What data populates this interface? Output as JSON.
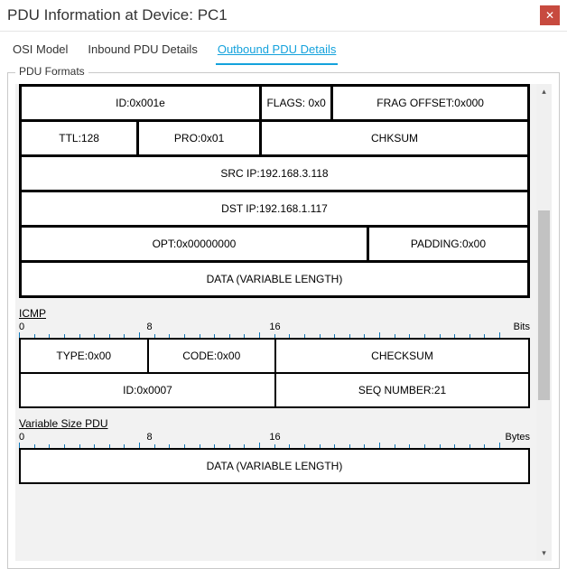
{
  "window": {
    "title": "PDU Information at Device: PC1"
  },
  "tabs": {
    "osi": "OSI Model",
    "inbound": "Inbound PDU Details",
    "outbound": "Outbound PDU Details"
  },
  "group": {
    "label": "PDU Formats"
  },
  "ip": {
    "row1": {
      "id": "ID:0x001e",
      "flags": "FLAGS: 0x0",
      "frag": "FRAG OFFSET:0x000"
    },
    "row2": {
      "ttl": "TTL:128",
      "pro": "PRO:0x01",
      "chksum": "CHKSUM"
    },
    "src": "SRC IP:192.168.3.118",
    "dst": "DST IP:192.168.1.117",
    "opt": "OPT:0x00000000",
    "padding": "PADDING:0x00",
    "data": "DATA (VARIABLE LENGTH)"
  },
  "icmp": {
    "label": "ICMP",
    "ruler": {
      "n0": "0",
      "n8": "8",
      "n16": "16",
      "unit": "Bits"
    },
    "type": "TYPE:0x00",
    "code": "CODE:0x00",
    "checksum": "CHECKSUM",
    "id": "ID:0x0007",
    "seq": "SEQ NUMBER:21"
  },
  "varpdu": {
    "label": "Variable Size PDU",
    "ruler": {
      "n0": "0",
      "n8": "8",
      "n16": "16",
      "unit": "Bytes"
    },
    "data": "DATA (VARIABLE LENGTH)"
  },
  "style": {
    "tick_color": "#1077b8",
    "border_color": "#000000"
  }
}
